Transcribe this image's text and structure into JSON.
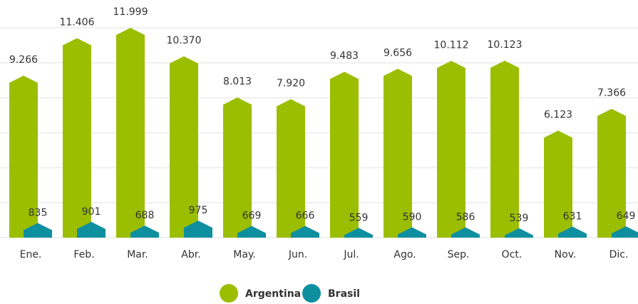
{
  "chart_data": {
    "type": "bar",
    "categories": [
      "Ene.",
      "Feb.",
      "Mar.",
      "Abr.",
      "May.",
      "Jun.",
      "Jul.",
      "Ago.",
      "Sep.",
      "Oct.",
      "Nov.",
      "Dic."
    ],
    "series": [
      {
        "name": "Argentina",
        "color": "#9bbe00",
        "values": [
          9266,
          11406,
          11999,
          10370,
          8013,
          7920,
          9483,
          9656,
          10112,
          10123,
          6123,
          7366
        ],
        "value_labels": [
          "9.266",
          "11.406",
          "11.999",
          "10.370",
          "8.013",
          "7.920",
          "9.483",
          "9.656",
          "10.112",
          "10.123",
          "6.123",
          "7.366"
        ]
      },
      {
        "name": "Brasil",
        "color": "#0e8fa0",
        "values": [
          835,
          901,
          688,
          975,
          669,
          666,
          559,
          590,
          586,
          539,
          631,
          649
        ]
      }
    ],
    "ylim": [
      0,
      12000
    ],
    "yticks": [
      0,
      2000,
      4000,
      6000,
      8000,
      10000,
      12000
    ],
    "grid": true,
    "legend": "bottom"
  }
}
